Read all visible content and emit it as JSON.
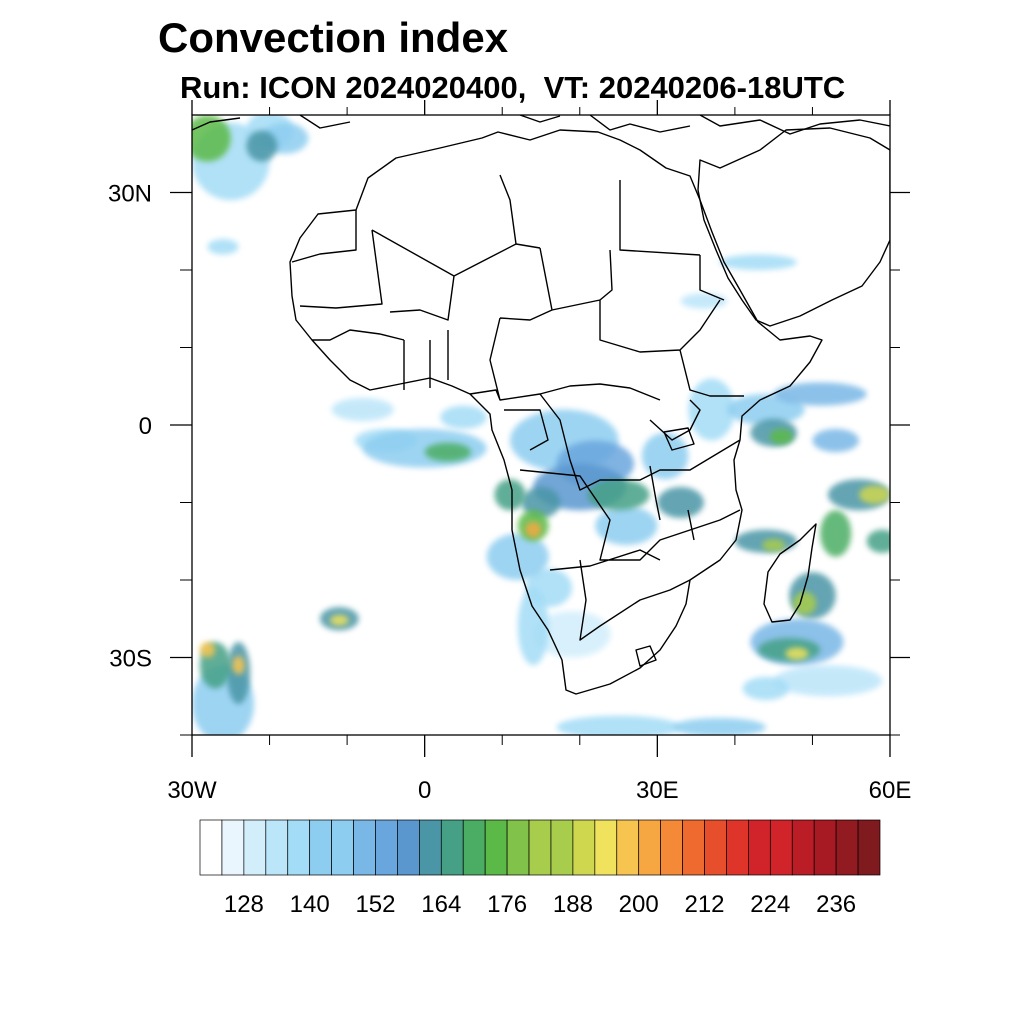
{
  "title": "Convection index",
  "subtitle": {
    "run_label": "Run:",
    "run_value": "ICON 2024020400,",
    "vt_label": "VT:",
    "vt_value": "20240206-18UTC"
  },
  "map": {
    "lon_range": [
      -30,
      60
    ],
    "lat_range": [
      -40,
      40
    ],
    "lon_ticks": [
      {
        "value": -30,
        "label": "30W"
      },
      {
        "value": 0,
        "label": "0"
      },
      {
        "value": 30,
        "label": "30E"
      },
      {
        "value": 60,
        "label": "60E"
      }
    ],
    "lat_ticks": [
      {
        "value": 30,
        "label": "30N"
      },
      {
        "value": 0,
        "label": "0"
      },
      {
        "value": -30,
        "label": "30S"
      }
    ],
    "minor_lon_ticks": [
      -20,
      -10,
      10,
      20,
      40,
      50
    ],
    "minor_lat_ticks": [
      20,
      10,
      -10,
      -20,
      -40
    ]
  },
  "colorbar": {
    "colors": [
      "#ffffff",
      "#eaf6fd",
      "#d2eefb",
      "#bbe5f9",
      "#a3dcf6",
      "#8dcdf0",
      "#79b7e6",
      "#6aa6de",
      "#5a97cf",
      "#4a95a6",
      "#45a086",
      "#4bad63",
      "#5bba47",
      "#80c24a",
      "#a8cc4c",
      "#cfd74f",
      "#f0e25c",
      "#f7c54f",
      "#f7a741",
      "#f48a37",
      "#ee6a2f",
      "#e74e2b",
      "#df3429",
      "#d1242a",
      "#bb1d26",
      "#a71a23",
      "#921a21",
      "#7f1a1e"
    ],
    "labels": [
      "128",
      "140",
      "152",
      "164",
      "176",
      "188",
      "200",
      "212",
      "224",
      "236"
    ],
    "label_positions": [
      2,
      5,
      8,
      11,
      14,
      17,
      20,
      23,
      26,
      29
    ]
  },
  "convection_cells": [
    {
      "lon": -20,
      "lat": 38,
      "rx": 3,
      "ry": 2.5,
      "level": 4
    },
    {
      "lon": -21,
      "lat": 36,
      "rx": 2,
      "ry": 2,
      "level": 9
    },
    {
      "lon": -25,
      "lat": 34,
      "rx": 5,
      "ry": 5,
      "level": 4
    },
    {
      "lon": -28,
      "lat": 37,
      "rx": 3,
      "ry": 3,
      "level": 12
    },
    {
      "lon": -18,
      "lat": 37,
      "rx": 3,
      "ry": 2,
      "level": 5
    },
    {
      "lon": -26,
      "lat": 23,
      "rx": 2,
      "ry": 1,
      "level": 4
    },
    {
      "lon": -8,
      "lat": 2,
      "rx": 4,
      "ry": 1.5,
      "level": 3
    },
    {
      "lon": 0,
      "lat": -3,
      "rx": 8,
      "ry": 2.5,
      "level": 5
    },
    {
      "lon": 3,
      "lat": -3.5,
      "rx": 3,
      "ry": 1.2,
      "level": 11
    },
    {
      "lon": -5,
      "lat": -2,
      "rx": 4,
      "ry": 1.5,
      "level": 4
    },
    {
      "lon": 5,
      "lat": 1,
      "rx": 3,
      "ry": 1.5,
      "level": 4
    },
    {
      "lon": 18,
      "lat": -2,
      "rx": 7,
      "ry": 4,
      "level": 5
    },
    {
      "lon": 22,
      "lat": -5,
      "rx": 5,
      "ry": 3,
      "level": 7
    },
    {
      "lon": 20,
      "lat": -8,
      "rx": 6,
      "ry": 3,
      "level": 8
    },
    {
      "lon": 25,
      "lat": -9,
      "rx": 4,
      "ry": 2,
      "level": 10
    },
    {
      "lon": 15,
      "lat": -10,
      "rx": 2.5,
      "ry": 2,
      "level": 9
    },
    {
      "lon": 14,
      "lat": -13,
      "rx": 2,
      "ry": 2,
      "level": 12
    },
    {
      "lon": 14,
      "lat": -13.5,
      "rx": 1,
      "ry": 1,
      "level": 18
    },
    {
      "lon": 11,
      "lat": -9,
      "rx": 2,
      "ry": 2,
      "level": 10
    },
    {
      "lon": 12,
      "lat": -17,
      "rx": 4,
      "ry": 3,
      "level": 5
    },
    {
      "lon": 16,
      "lat": -21,
      "rx": 3,
      "ry": 2.5,
      "level": 4
    },
    {
      "lon": 26,
      "lat": -13,
      "rx": 4,
      "ry": 2.5,
      "level": 5
    },
    {
      "lon": 31,
      "lat": -4,
      "rx": 3,
      "ry": 3,
      "level": 5
    },
    {
      "lon": 33,
      "lat": -10,
      "rx": 3,
      "ry": 2,
      "level": 9
    },
    {
      "lon": 37,
      "lat": 2,
      "rx": 3,
      "ry": 4,
      "level": 4
    },
    {
      "lon": 44,
      "lat": 2,
      "rx": 5,
      "ry": 2,
      "level": 5
    },
    {
      "lon": 45,
      "lat": -1,
      "rx": 3,
      "ry": 1.8,
      "level": 9
    },
    {
      "lon": 46,
      "lat": -1.5,
      "rx": 1.5,
      "ry": 1,
      "level": 12
    },
    {
      "lon": 51,
      "lat": 4,
      "rx": 6,
      "ry": 1.5,
      "level": 6
    },
    {
      "lon": 53,
      "lat": -2,
      "rx": 3,
      "ry": 1.5,
      "level": 6
    },
    {
      "lon": 56,
      "lat": -9,
      "rx": 4,
      "ry": 2,
      "level": 9
    },
    {
      "lon": 58,
      "lat": -9,
      "rx": 2,
      "ry": 1.2,
      "level": 15
    },
    {
      "lon": 59,
      "lat": -15,
      "rx": 2,
      "ry": 1.5,
      "level": 10
    },
    {
      "lon": 53,
      "lat": -14,
      "rx": 2,
      "ry": 3,
      "level": 11
    },
    {
      "lon": 44,
      "lat": -15,
      "rx": 4,
      "ry": 1.5,
      "level": 9
    },
    {
      "lon": 45,
      "lat": -15.5,
      "rx": 1.5,
      "ry": 0.8,
      "level": 14
    },
    {
      "lon": 50,
      "lat": -22,
      "rx": 3,
      "ry": 3,
      "level": 9
    },
    {
      "lon": 49,
      "lat": -23,
      "rx": 1.5,
      "ry": 1.5,
      "level": 14
    },
    {
      "lon": 48,
      "lat": -28,
      "rx": 6,
      "ry": 3,
      "level": 6
    },
    {
      "lon": 47,
      "lat": -29,
      "rx": 4,
      "ry": 1.5,
      "level": 10
    },
    {
      "lon": 48,
      "lat": -29.5,
      "rx": 1.5,
      "ry": 0.8,
      "level": 16
    },
    {
      "lon": 52,
      "lat": -33,
      "rx": 7,
      "ry": 2,
      "level": 3
    },
    {
      "lon": 44,
      "lat": -34,
      "rx": 3,
      "ry": 1.5,
      "level": 4
    },
    {
      "lon": -11,
      "lat": -25,
      "rx": 2.5,
      "ry": 1.5,
      "level": 9
    },
    {
      "lon": -11,
      "lat": -25.2,
      "rx": 1.2,
      "ry": 0.7,
      "level": 16
    },
    {
      "lon": -26,
      "lat": -36,
      "rx": 4,
      "ry": 5,
      "level": 5
    },
    {
      "lon": -27,
      "lat": -31,
      "rx": 2,
      "ry": 3,
      "level": 10
    },
    {
      "lon": -24,
      "lat": -32,
      "rx": 1.5,
      "ry": 4,
      "level": 9
    },
    {
      "lon": -24,
      "lat": -31,
      "rx": 0.8,
      "ry": 1.2,
      "level": 17
    },
    {
      "lon": -28,
      "lat": -29,
      "rx": 1,
      "ry": 1,
      "level": 17
    },
    {
      "lon": 43,
      "lat": 21,
      "rx": 5,
      "ry": 1,
      "level": 4
    },
    {
      "lon": 36,
      "lat": 16,
      "rx": 3,
      "ry": 1,
      "level": 3
    },
    {
      "lon": 25,
      "lat": -39,
      "rx": 8,
      "ry": 1.5,
      "level": 4
    },
    {
      "lon": 38,
      "lat": -39,
      "rx": 6,
      "ry": 1.2,
      "level": 5
    },
    {
      "lon": 19,
      "lat": -27,
      "rx": 5,
      "ry": 3,
      "level": 2
    },
    {
      "lon": 14,
      "lat": -26,
      "rx": 2,
      "ry": 5,
      "level": 4
    }
  ]
}
